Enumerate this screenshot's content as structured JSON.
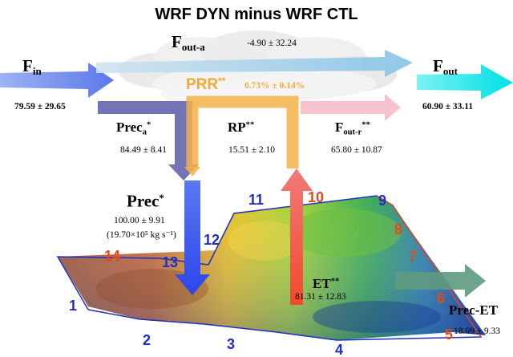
{
  "title": "WRF DYN minus WRF CTL",
  "fin": {
    "label": "F",
    "sub": "in",
    "value": "79.59 ± 29.65"
  },
  "fout_a": {
    "label": "F",
    "sub": "out-a",
    "value": "-4.90 ± 32.24"
  },
  "fout": {
    "label": "F",
    "sub": "out",
    "value": "60.90 ± 33.11"
  },
  "prr": {
    "label": "PRR",
    "sup": "**",
    "value": "0.73% ± 0.14%"
  },
  "preca": {
    "label": "Prec",
    "sub": "a",
    "sup": "*",
    "value": "84.49 ± 8.41"
  },
  "rp": {
    "label": "RP",
    "sup": "**",
    "value": "15.51 ± 2.10"
  },
  "fout_r": {
    "label": "F",
    "sub": "out-r",
    "sup": "**",
    "value": "65.80 ± 10.87"
  },
  "prec": {
    "label": "Prec",
    "sup": "*",
    "value": "100.00 ± 9.91",
    "flux": "(19.70×10⁵ kg s⁻¹)"
  },
  "et": {
    "label": "ET",
    "sup": "**",
    "value": "81.31 ± 12.83"
  },
  "prec_et": {
    "label": "Prec-ET",
    "value": "18.69 ± 9.33"
  },
  "boundary_segments": [
    "1",
    "2",
    "3",
    "4",
    "5",
    "6",
    "7",
    "8",
    "9",
    "10",
    "11",
    "12",
    "13",
    "14"
  ],
  "colors": {
    "inflow": "#6f8ef0",
    "outflow_atm": "#9ccbe6",
    "outflow": "#1fe6ea",
    "prr": "#f4b14a",
    "prec_a": "#7373b5",
    "recycle": "#f6bcc6",
    "prec": "#3a56ee",
    "et": "#ef5a52",
    "prec_et": "#5f9a7f",
    "segment_blue": "#1f2fbf",
    "segment_red": "#e4491b"
  }
}
